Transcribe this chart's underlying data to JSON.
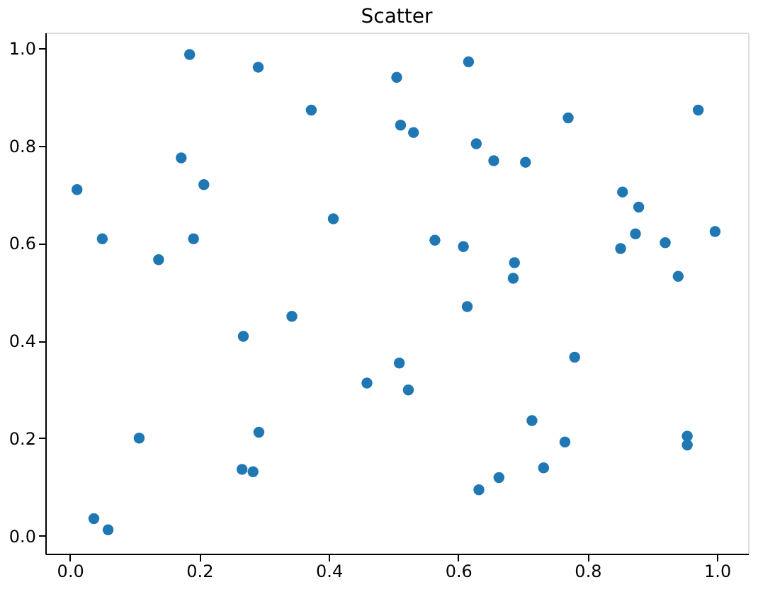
{
  "chart_data": {
    "type": "scatter",
    "title": "Scatter",
    "x": [
      0.185,
      0.291,
      0.373,
      0.172,
      0.207,
      0.011,
      0.05,
      0.191,
      0.137,
      0.407,
      0.505,
      0.616,
      0.511,
      0.531,
      0.628,
      0.77,
      0.971,
      0.655,
      0.704,
      0.854,
      0.879,
      0.564,
      0.608,
      0.874,
      0.851,
      0.92,
      0.997,
      0.687,
      0.685,
      0.94,
      0.343,
      0.268,
      0.459,
      0.107,
      0.292,
      0.266,
      0.283,
      0.037,
      0.059,
      0.614,
      0.78,
      0.509,
      0.523,
      0.714,
      0.765,
      0.954,
      0.954,
      0.732,
      0.663,
      0.632
    ],
    "series": [
      {
        "color": "#1f77b4",
        "values": [
          0.987,
          0.961,
          0.873,
          0.775,
          0.72,
          0.71,
          0.609,
          0.609,
          0.566,
          0.65,
          0.94,
          0.972,
          0.842,
          0.827,
          0.804,
          0.857,
          0.873,
          0.769,
          0.766,
          0.705,
          0.674,
          0.606,
          0.593,
          0.619,
          0.589,
          0.601,
          0.624,
          0.56,
          0.528,
          0.532,
          0.45,
          0.409,
          0.313,
          0.2,
          0.212,
          0.136,
          0.131,
          0.035,
          0.012,
          0.47,
          0.366,
          0.354,
          0.299,
          0.236,
          0.192,
          0.204,
          0.186,
          0.139,
          0.119,
          0.094
        ]
      }
    ],
    "xlim": [
      -0.038,
      1.048
    ],
    "ylim": [
      -0.037,
      1.032
    ],
    "xticks": [
      {
        "value": 0,
        "label": "0.0"
      },
      0.2,
      0.4,
      0.6,
      0.8,
      {
        "value": 1,
        "label": "1.0"
      }
    ],
    "yticks": [
      {
        "value": 0,
        "label": "0.0"
      },
      0.2,
      0.4,
      0.6,
      0.8,
      {
        "value": 1,
        "label": "1.0"
      }
    ],
    "grid": false,
    "marker": "circle"
  }
}
